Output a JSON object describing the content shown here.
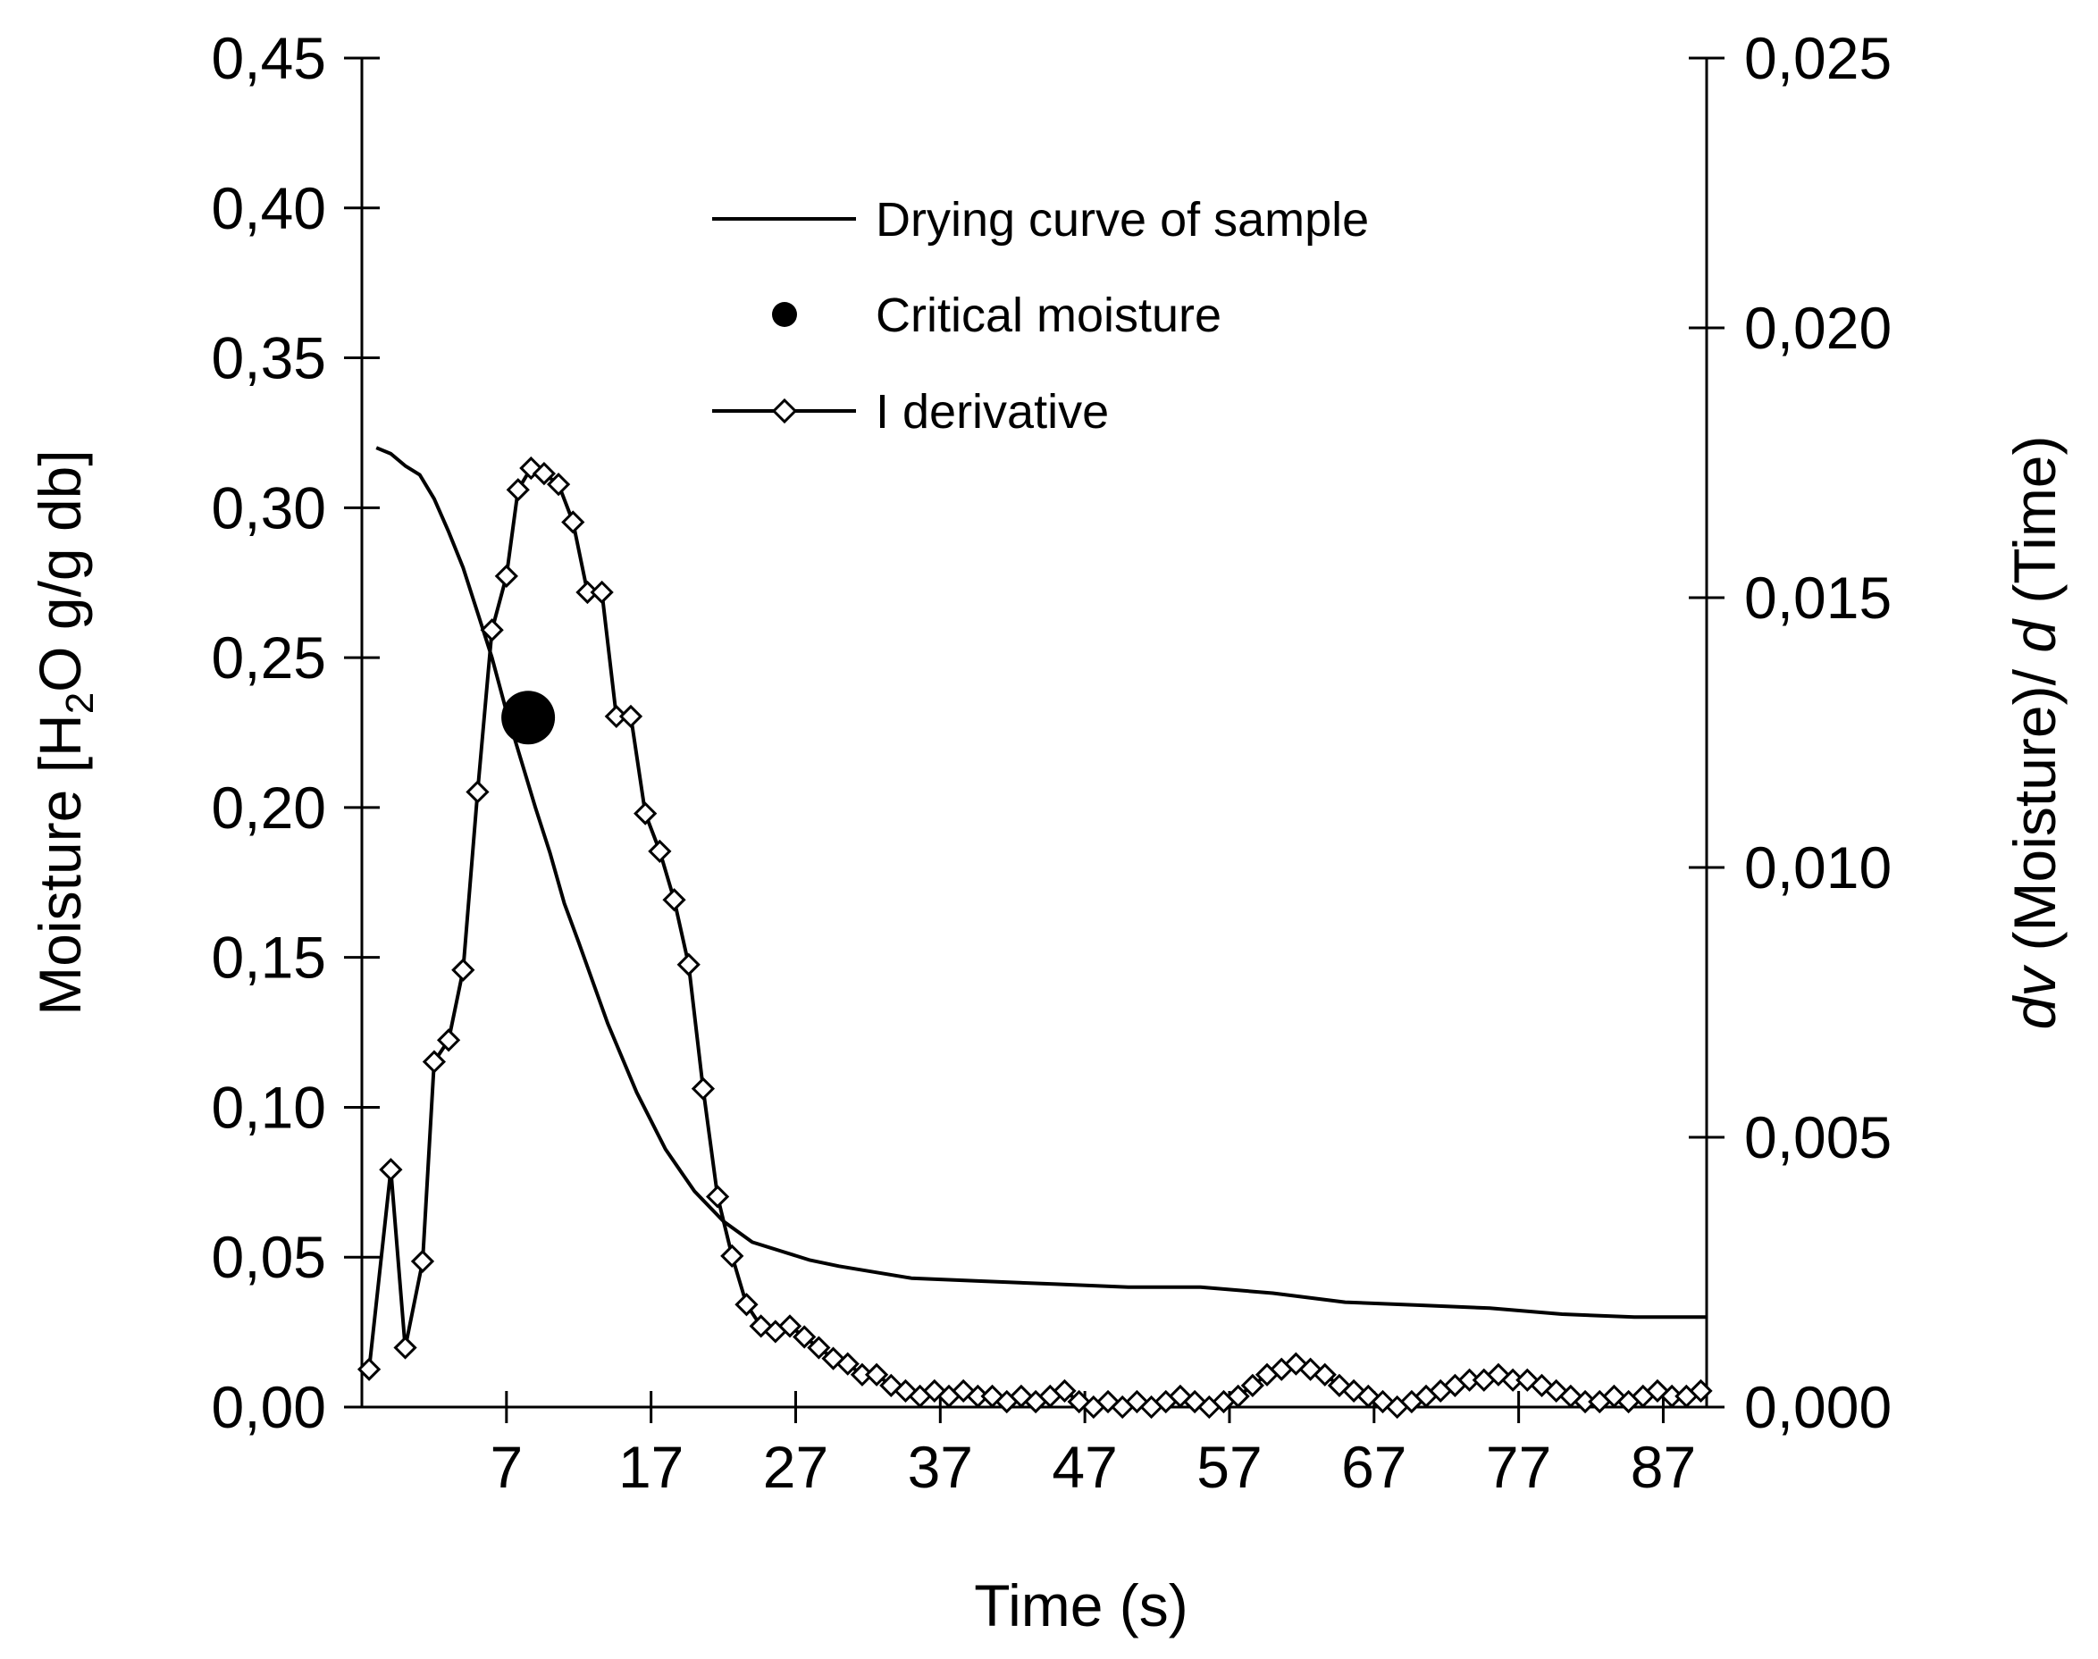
{
  "chart_data": {
    "type": "line",
    "title": "",
    "xlabel": "Time  (s)",
    "ylabel": {
      "main": "Moisture [H",
      "sub": "2",
      "rest": "O g/g db]"
    },
    "y2label": {
      "italic1": "dv",
      "mid": " (Moisture)/ ",
      "italic2": "d",
      "rest": " (Time)"
    },
    "xlim": [
      -3,
      90
    ],
    "ylim": [
      0,
      0.45
    ],
    "y2lim": [
      0,
      0.025
    ],
    "x_ticks": [
      "7",
      "17",
      "27",
      "37",
      "47",
      "57",
      "67",
      "77",
      "87"
    ],
    "x_tick_values": [
      7,
      17,
      27,
      37,
      47,
      57,
      67,
      77,
      87
    ],
    "y_ticks": [
      "0,00",
      "0,05",
      "0,10",
      "0,15",
      "0,20",
      "0,25",
      "0,30",
      "0,35",
      "0,40",
      "0,45"
    ],
    "y_tick_values": [
      0,
      0.05,
      0.1,
      0.15,
      0.2,
      0.25,
      0.3,
      0.35,
      0.4,
      0.45
    ],
    "y2_ticks": [
      "0,000",
      "0,005",
      "0,010",
      "0,015",
      "0,020",
      "0,025"
    ],
    "y2_tick_values": [
      0,
      0.005,
      0.01,
      0.015,
      0.02,
      0.025
    ],
    "legend": {
      "position": "top-center",
      "entries": [
        "Drying curve of  sample",
        "Critical moisture",
        "I derivative"
      ]
    },
    "series": [
      {
        "name": "Drying curve of  sample",
        "axis": "left",
        "marker": "none",
        "x": [
          -2,
          -1,
          0,
          1,
          2,
          3,
          4,
          5,
          6,
          7,
          8,
          9,
          10,
          11,
          12,
          14,
          16,
          18,
          20,
          22,
          24,
          26,
          28,
          30,
          35,
          40,
          45,
          50,
          55,
          60,
          65,
          70,
          75,
          80,
          85,
          90
        ],
        "y": [
          0.32,
          0.318,
          0.314,
          0.311,
          0.303,
          0.292,
          0.28,
          0.265,
          0.25,
          0.232,
          0.216,
          0.2,
          0.185,
          0.168,
          0.155,
          0.128,
          0.105,
          0.086,
          0.072,
          0.062,
          0.055,
          0.052,
          0.049,
          0.047,
          0.043,
          0.042,
          0.041,
          0.04,
          0.04,
          0.038,
          0.035,
          0.034,
          0.033,
          0.031,
          0.03,
          0.03
        ]
      },
      {
        "name": "Critical moisture",
        "axis": "left",
        "marker": "filled-circle",
        "x": [
          8.5
        ],
        "y": [
          0.23
        ]
      },
      {
        "name": "I derivative",
        "axis": "right",
        "marker": "open-diamond",
        "x": [
          -2.5,
          -1,
          0,
          1.2,
          2,
          3,
          4,
          5,
          6,
          7,
          7.8,
          8.7,
          9.6,
          10.6,
          11.6,
          12.6,
          13.6,
          14.6,
          15.6,
          16.6,
          17.6,
          18.6,
          19.6,
          20.6,
          21.6,
          22.6,
          23.6,
          24.6,
          25.6,
          26.6,
          27.6,
          28.6,
          29.6,
          30.6,
          31.6,
          32.6,
          33.6,
          34.6,
          35.6,
          36.6,
          37.6,
          38.6,
          39.6,
          40.6,
          41.6,
          42.6,
          43.6,
          44.6,
          45.6,
          46.6,
          47.6,
          48.6,
          49.6,
          50.6,
          51.6,
          52.6,
          53.6,
          54.6,
          55.6,
          56.6,
          57.6,
          58.6,
          59.6,
          60.6,
          61.6,
          62.6,
          63.6,
          64.6,
          65.6,
          66.6,
          67.6,
          68.6,
          69.6,
          70.6,
          71.6,
          72.6,
          73.6,
          74.6,
          75.6,
          76.6,
          77.6,
          78.6,
          79.6,
          80.6,
          81.6,
          82.6,
          83.6,
          84.6,
          85.6,
          86.6,
          87.6,
          88.6,
          89.6
        ],
        "y": [
          0.0007,
          0.0044,
          0.0011,
          0.0027,
          0.0064,
          0.0068,
          0.0081,
          0.0114,
          0.0144,
          0.0154,
          0.017,
          0.0174,
          0.0173,
          0.0171,
          0.0164,
          0.0151,
          0.0151,
          0.0128,
          0.0128,
          0.011,
          0.0103,
          0.0094,
          0.0082,
          0.0059,
          0.0039,
          0.0028,
          0.0019,
          0.0015,
          0.0014,
          0.0015,
          0.0013,
          0.0011,
          0.0009,
          0.0008,
          0.0006,
          0.0006,
          0.0004,
          0.0003,
          0.0002,
          0.0003,
          0.0002,
          0.0003,
          0.0002,
          0.0002,
          0.0001,
          0.0002,
          0.0001,
          0.0002,
          0.0003,
          0.0001,
          0.0,
          0.0001,
          0.0,
          0.0001,
          0.0,
          0.0001,
          0.0002,
          0.0001,
          0.0,
          0.0001,
          0.0002,
          0.0004,
          0.0006,
          0.0007,
          0.0008,
          0.0007,
          0.0006,
          0.0004,
          0.0003,
          0.0002,
          0.0001,
          0.0,
          0.0001,
          0.0002,
          0.0003,
          0.0004,
          0.0005,
          0.0005,
          0.0006,
          0.0005,
          0.0005,
          0.0004,
          0.0003,
          0.0002,
          0.0001,
          0.0001,
          0.0002,
          0.0001,
          0.0002,
          0.0003,
          0.0002,
          0.0002,
          0.0003
        ]
      }
    ]
  }
}
